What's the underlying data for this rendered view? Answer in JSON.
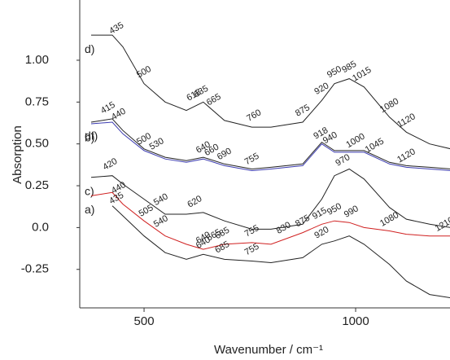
{
  "chart_data": {
    "type": "line",
    "xlabel": "Wavenumber / cm⁻¹",
    "ylabel": "Absorption",
    "xlim": [
      348,
      1223
    ],
    "ylim": [
      -0.48,
      1.36
    ],
    "xticks": [
      500,
      1000
    ],
    "yticks": [
      {
        "value": 1,
        "label": "1.00"
      },
      0.75,
      {
        "value": 0.5,
        "label": "0.50"
      },
      0.25,
      {
        "value": 0,
        "label": "0.0"
      },
      -0.25
    ],
    "x": [
      375,
      425,
      450,
      500,
      550,
      600,
      640,
      690,
      755,
      800,
      875,
      920,
      950,
      985,
      1020,
      1080,
      1120,
      1175,
      1225
    ],
    "series": [
      {
        "name": "d)",
        "color": "#222222",
        "values": [
          1.15,
          1.15,
          1.08,
          0.86,
          0.75,
          0.7,
          0.75,
          0.64,
          0.6,
          0.6,
          0.63,
          0.76,
          0.86,
          0.89,
          0.84,
          0.66,
          0.57,
          0.5,
          0.47
        ],
        "peak_labels": [
          "435",
          "500",
          "618",
          "635",
          "665",
          "760",
          "875",
          "920",
          "950",
          "985",
          "1015",
          "1080",
          "1120"
        ]
      },
      {
        "name": "df)",
        "color": "#222222",
        "values": [
          0.63,
          0.65,
          0.58,
          0.47,
          0.42,
          0.4,
          0.42,
          0.38,
          0.35,
          0.36,
          0.38,
          0.51,
          0.46,
          0.46,
          0.46,
          0.39,
          0.37,
          0.36,
          0.35
        ],
        "peak_labels": [
          "415",
          "440"
        ]
      },
      {
        "name": "b)",
        "color": "#3b3bb0",
        "values": [
          0.62,
          0.63,
          0.56,
          0.46,
          0.41,
          0.39,
          0.41,
          0.37,
          0.34,
          0.35,
          0.37,
          0.5,
          0.45,
          0.45,
          0.45,
          0.38,
          0.36,
          0.35,
          0.34
        ],
        "peak_labels": [
          "500",
          "530",
          "640",
          "660",
          "690",
          "755",
          "918",
          "940",
          "1000",
          "1045",
          "1120"
        ]
      },
      {
        "name": "c)",
        "color": "#222222",
        "values": [
          0.3,
          0.31,
          0.26,
          0.17,
          0.08,
          0.08,
          0.09,
          0.04,
          -0.01,
          -0.01,
          0.02,
          0.17,
          0.31,
          0.35,
          0.29,
          0.12,
          0.05,
          0.02,
          0.0
        ],
        "peak_labels": [
          "420",
          "540",
          "620",
          "970"
        ]
      },
      {
        "name": "a)",
        "color": "#d02020",
        "values": [
          0.19,
          0.21,
          0.14,
          0.04,
          -0.05,
          -0.1,
          -0.13,
          -0.1,
          -0.09,
          -0.1,
          -0.03,
          0.02,
          0.04,
          0.03,
          0.0,
          -0.02,
          -0.04,
          -0.05,
          -0.05
        ],
        "peak_labels": [
          "440",
          "505",
          "540",
          "640",
          "665",
          "685",
          "755",
          "830",
          "875",
          "915",
          "950",
          "990",
          "1080",
          "1210"
        ]
      },
      {
        "color": "#222222",
        "values": [
          null,
          0.13,
          0.07,
          -0.05,
          -0.15,
          -0.19,
          -0.16,
          -0.19,
          -0.2,
          -0.21,
          -0.18,
          -0.1,
          -0.08,
          -0.05,
          -0.1,
          -0.22,
          -0.32,
          -0.4,
          -0.42
        ],
        "peak_labels": [
          "435",
          "640",
          "685",
          "755",
          "920"
        ]
      }
    ]
  }
}
